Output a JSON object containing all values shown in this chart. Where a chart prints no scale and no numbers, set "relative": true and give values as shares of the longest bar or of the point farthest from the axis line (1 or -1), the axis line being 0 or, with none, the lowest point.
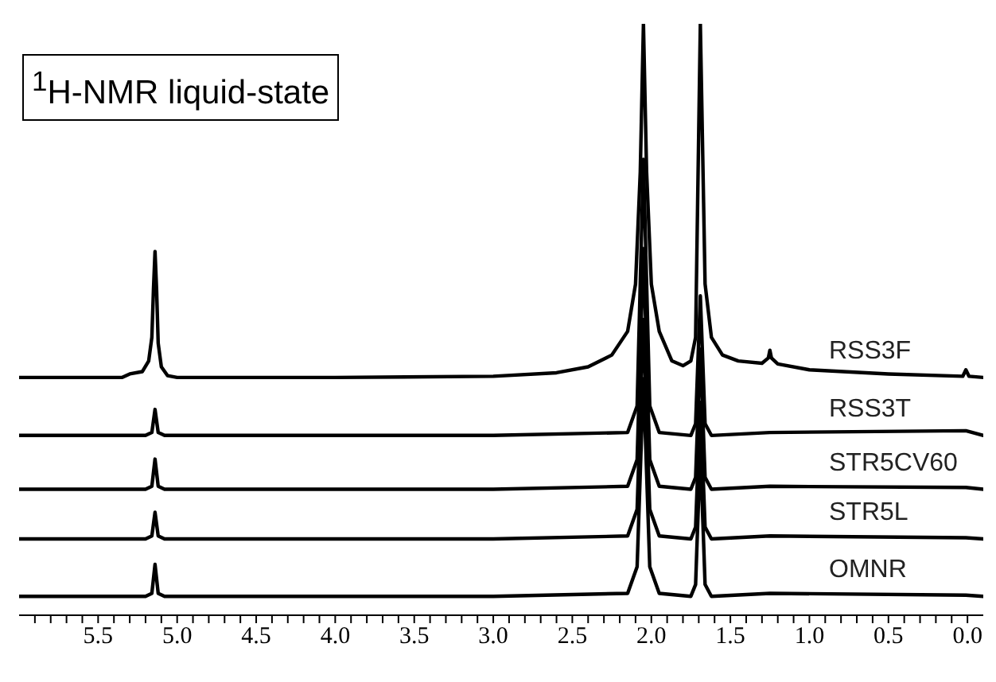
{
  "chart_data": {
    "type": "line",
    "relative": true,
    "marker": "none",
    "annotations": [
      "$^{1}$H-NMR liquid-state"
    ],
    "xlim": [
      6.0,
      -0.1
    ],
    "xticks": [
      {
        "value": 5.5,
        "label": "5.5"
      },
      {
        "value": 5.0,
        "label": "5.0"
      },
      {
        "value": 4.5,
        "label": "4.5"
      },
      {
        "value": 4.0,
        "label": "4.0"
      },
      {
        "value": 3.5,
        "label": "3.5"
      },
      {
        "value": 3.0,
        "label": "3.0"
      },
      {
        "value": 2.5,
        "label": "2.5"
      },
      {
        "value": 2.0,
        "label": "2.0"
      },
      {
        "value": 1.5,
        "label": "1.5"
      },
      {
        "value": 1.0,
        "label": "1.0"
      },
      {
        "value": 0.5,
        "label": "0.5"
      },
      {
        "value": 0,
        "label": "0.0"
      },
      {
        "value": 5.9,
        "label": null
      },
      {
        "value": 5.8,
        "label": null
      },
      {
        "value": 5.7,
        "label": null
      },
      {
        "value": 5.6,
        "label": null
      },
      {
        "value": 5.4,
        "label": null
      },
      {
        "value": 5.3,
        "label": null
      },
      {
        "value": 5.2,
        "label": null
      },
      {
        "value": 5.1,
        "label": null
      },
      {
        "value": 4.9,
        "label": null
      },
      {
        "value": 4.8,
        "label": null
      },
      {
        "value": 4.7,
        "label": null
      },
      {
        "value": 4.6,
        "label": null
      },
      {
        "value": 4.4,
        "label": null
      },
      {
        "value": 4.3,
        "label": null
      },
      {
        "value": 4.2,
        "label": null
      },
      {
        "value": 4.1,
        "label": null
      },
      {
        "value": 3.9,
        "label": null
      },
      {
        "value": 3.8,
        "label": null
      },
      {
        "value": 3.7,
        "label": null
      },
      {
        "value": 3.6,
        "label": null
      },
      {
        "value": 3.4,
        "label": null
      },
      {
        "value": 3.3,
        "label": null
      },
      {
        "value": 3.2,
        "label": null
      },
      {
        "value": 3.1,
        "label": null
      },
      {
        "value": 2.9,
        "label": null
      },
      {
        "value": 2.8,
        "label": null
      },
      {
        "value": 2.7,
        "label": null
      },
      {
        "value": 2.6,
        "label": null
      },
      {
        "value": 2.4,
        "label": null
      },
      {
        "value": 2.3,
        "label": null
      },
      {
        "value": 2.2,
        "label": null
      },
      {
        "value": 2.1,
        "label": null
      },
      {
        "value": 1.9,
        "label": null
      },
      {
        "value": 1.8,
        "label": null
      },
      {
        "value": 1.7,
        "label": null
      },
      {
        "value": 1.6,
        "label": null
      },
      {
        "value": 1.4,
        "label": null
      },
      {
        "value": 1.3,
        "label": null
      },
      {
        "value": 1.2,
        "label": null
      },
      {
        "value": 1.1,
        "label": null
      },
      {
        "value": 0.9,
        "label": null
      },
      {
        "value": 0.8,
        "label": null
      },
      {
        "value": 0.7,
        "label": null
      },
      {
        "value": 0.6,
        "label": null
      },
      {
        "value": 0.4,
        "label": null
      },
      {
        "value": 0.3,
        "label": null
      },
      {
        "value": 0.2,
        "label": null
      },
      {
        "value": 0.1,
        "label": null
      }
    ],
    "series": [
      {
        "name": "RSS3F",
        "color": "#000000",
        "x": [
          6.0,
          5.35,
          5.3,
          5.22,
          5.18,
          5.16,
          5.15,
          5.14,
          5.13,
          5.12,
          5.1,
          5.06,
          5.0,
          4.0,
          3.0,
          2.6,
          2.4,
          2.25,
          2.15,
          2.1,
          2.07,
          2.05,
          2.03,
          2.0,
          1.95,
          1.87,
          1.8,
          1.75,
          1.72,
          1.69,
          1.66,
          1.62,
          1.55,
          1.45,
          1.3,
          1.26,
          1.25,
          1.24,
          1.2,
          1.0,
          0.5,
          0.03,
          0.01,
          -0.01,
          -0.1
        ],
        "values": [
          0.402,
          0.402,
          0.408,
          0.412,
          0.43,
          0.47,
          0.55,
          0.615,
          0.55,
          0.46,
          0.42,
          0.405,
          0.402,
          0.402,
          0.404,
          0.41,
          0.42,
          0.44,
          0.48,
          0.56,
          0.75,
          1.0,
          0.75,
          0.56,
          0.48,
          0.43,
          0.422,
          0.43,
          0.47,
          1.0,
          0.56,
          0.47,
          0.44,
          0.43,
          0.426,
          0.435,
          0.448,
          0.435,
          0.425,
          0.415,
          0.408,
          0.404,
          0.415,
          0.404,
          0.402
        ]
      },
      {
        "name": "RSS3T",
        "color": "#000000",
        "x": [
          6.0,
          5.2,
          5.16,
          5.14,
          5.12,
          5.08,
          3.0,
          2.15,
          2.09,
          2.05,
          2.01,
          1.95,
          1.75,
          1.72,
          1.69,
          1.66,
          1.62,
          1.25,
          0.01,
          -0.1
        ],
        "values": [
          0.304,
          0.304,
          0.309,
          0.348,
          0.309,
          0.304,
          0.304,
          0.309,
          0.354,
          0.771,
          0.354,
          0.309,
          0.304,
          0.324,
          0.54,
          0.324,
          0.304,
          0.309,
          0.312,
          0.304
        ]
      },
      {
        "name": "STR5CV60",
        "color": "#000000",
        "x": [
          6.0,
          5.2,
          5.16,
          5.14,
          5.12,
          5.08,
          3.0,
          2.15,
          2.09,
          2.05,
          2.01,
          1.95,
          1.75,
          1.72,
          1.69,
          1.66,
          1.62,
          1.25,
          0.01,
          -0.1
        ],
        "values": [
          0.213,
          0.213,
          0.218,
          0.264,
          0.218,
          0.213,
          0.213,
          0.218,
          0.263,
          0.62,
          0.263,
          0.218,
          0.213,
          0.233,
          0.45,
          0.233,
          0.213,
          0.218,
          0.216,
          0.213
        ]
      },
      {
        "name": "STR5L",
        "color": "#000000",
        "x": [
          6.0,
          5.2,
          5.16,
          5.14,
          5.12,
          5.08,
          3.0,
          2.15,
          2.09,
          2.05,
          2.01,
          1.95,
          1.75,
          1.72,
          1.69,
          1.66,
          1.62,
          1.25,
          0.01,
          -0.1
        ],
        "values": [
          0.129,
          0.129,
          0.134,
          0.174,
          0.134,
          0.129,
          0.129,
          0.134,
          0.179,
          0.5,
          0.179,
          0.134,
          0.129,
          0.149,
          0.36,
          0.149,
          0.129,
          0.134,
          0.131,
          0.129
        ]
      },
      {
        "name": "OMNR",
        "color": "#000000",
        "x": [
          6.0,
          5.2,
          5.16,
          5.14,
          5.12,
          5.08,
          3.0,
          2.15,
          2.09,
          2.05,
          2.01,
          1.95,
          1.75,
          1.72,
          1.69,
          1.66,
          1.62,
          1.25,
          0.01,
          -0.1
        ],
        "values": [
          0.032,
          0.032,
          0.037,
          0.086,
          0.037,
          0.032,
          0.032,
          0.037,
          0.082,
          0.4,
          0.082,
          0.037,
          0.032,
          0.052,
          0.28,
          0.052,
          0.032,
          0.037,
          0.034,
          0.032
        ]
      }
    ]
  }
}
